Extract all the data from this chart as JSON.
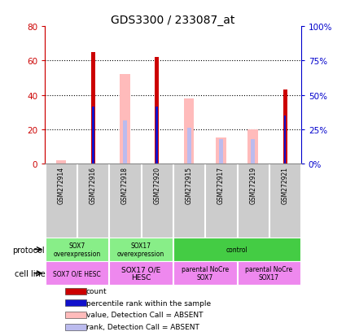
{
  "title": "GDS3300 / 233087_at",
  "samples": [
    "GSM272914",
    "GSM272916",
    "GSM272918",
    "GSM272920",
    "GSM272915",
    "GSM272917",
    "GSM272919",
    "GSM272921"
  ],
  "count_values": [
    0,
    65,
    0,
    62,
    0,
    0,
    0,
    43
  ],
  "rank_values": [
    0,
    33,
    0,
    33,
    0,
    0,
    0,
    28
  ],
  "absent_value_values": [
    2,
    0,
    52,
    0,
    38,
    15,
    20,
    0
  ],
  "absent_rank_values": [
    0,
    0,
    25,
    0,
    21,
    14,
    14,
    0
  ],
  "count_color": "#cc0000",
  "rank_color": "#1111cc",
  "absent_value_color": "#ffbbbb",
  "absent_rank_color": "#bbbbee",
  "ylim_left": [
    0,
    80
  ],
  "ylim_right": [
    0,
    100
  ],
  "yticks_left": [
    0,
    20,
    40,
    60,
    80
  ],
  "yticks_right": [
    0,
    25,
    50,
    75,
    100
  ],
  "ytick_labels_left": [
    "0",
    "20",
    "40",
    "60",
    "80"
  ],
  "ytick_labels_right": [
    "0%",
    "25%",
    "50%",
    "75%",
    "100%"
  ],
  "protocol_groups": [
    {
      "label": "SOX7\noverexpression",
      "start": 0,
      "end": 2,
      "color": "#88ee88"
    },
    {
      "label": "SOX17\noverexpression",
      "start": 2,
      "end": 4,
      "color": "#88ee88"
    },
    {
      "label": "control",
      "start": 4,
      "end": 8,
      "color": "#44cc44"
    }
  ],
  "cellline_groups": [
    {
      "label": "SOX7 O/E HESC",
      "start": 0,
      "end": 2,
      "color": "#ee88ee"
    },
    {
      "label": "SOX17 O/E\nHESC",
      "start": 2,
      "end": 4,
      "color": "#ee88ee"
    },
    {
      "label": "parental NoCre\nSOX7",
      "start": 4,
      "end": 6,
      "color": "#ee88ee"
    },
    {
      "label": "parental NoCre\nSOX17",
      "start": 6,
      "end": 8,
      "color": "#ee88ee"
    }
  ],
  "legend_items": [
    {
      "color": "#cc0000",
      "label": "count"
    },
    {
      "color": "#1111cc",
      "label": "percentile rank within the sample"
    },
    {
      "color": "#ffbbbb",
      "label": "value, Detection Call = ABSENT"
    },
    {
      "color": "#bbbbee",
      "label": "rank, Detection Call = ABSENT"
    }
  ],
  "background_color": "#ffffff",
  "left_axis_color": "#cc0000",
  "right_axis_color": "#0000cc",
  "sample_box_color": "#cccccc"
}
